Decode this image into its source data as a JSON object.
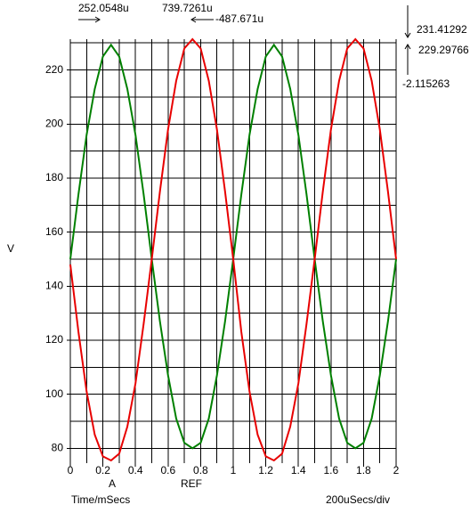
{
  "chart_data": {
    "type": "line",
    "ylabel": "V",
    "xlabel": "Time/mSecs",
    "scale_label": "200uSecs/div",
    "cursor_labels": [
      "A",
      "REF"
    ],
    "cursor_readouts": {
      "a_time": "252.0548u",
      "ref_time": "739.7261u",
      "delta_time": "-487.671u",
      "a_value": "231.41292",
      "ref_value": "229.29766",
      "delta_value": "-2.115263"
    },
    "x": [
      0,
      0.05,
      0.1,
      0.15,
      0.2,
      0.25,
      0.3,
      0.35,
      0.4,
      0.45,
      0.5,
      0.55,
      0.6,
      0.65,
      0.7,
      0.75,
      0.8,
      0.85,
      0.9,
      0.95,
      1,
      1.05,
      1.1,
      1.15,
      1.2,
      1.25,
      1.3,
      1.35,
      1.4,
      1.45,
      1.5,
      1.55,
      1.6,
      1.65,
      1.7,
      1.75,
      1.8,
      1.85,
      1.9,
      1.95,
      2
    ],
    "series": [
      {
        "color": "#008000",
        "values": [
          150,
          174,
          196,
          213,
          225,
          229.3,
          225,
          213,
          196,
          174,
          150,
          127,
          107,
          91,
          82,
          80,
          82,
          91,
          107,
          127,
          150,
          174,
          196,
          213,
          225,
          229.3,
          225,
          213,
          196,
          174,
          150,
          127,
          107,
          91,
          82,
          80,
          82,
          91,
          107,
          127,
          150
        ]
      },
      {
        "color": "#e80000",
        "values": [
          148,
          123,
          101,
          85,
          77,
          75.5,
          78,
          88,
          104,
          126,
          150,
          175,
          198,
          216,
          228,
          231.4,
          228,
          216,
          198,
          175,
          150,
          123,
          101,
          85,
          77,
          75.5,
          78,
          88,
          104,
          126,
          150,
          175,
          198,
          216,
          228,
          231.4,
          228,
          216,
          198,
          175,
          150
        ]
      }
    ],
    "xlim": [
      0,
      2
    ],
    "xticks": [
      0,
      0.2,
      0.4,
      0.6,
      0.8,
      1,
      1.2,
      1.4,
      1.6,
      1.8,
      2
    ],
    "xminor_ticks": [
      0.1,
      0.3,
      0.5,
      0.7,
      0.9,
      1.1,
      1.3,
      1.5,
      1.7,
      1.9
    ],
    "ylim": [
      74.5,
      231.4
    ],
    "yticks": [
      80,
      100,
      120,
      140,
      160,
      180,
      200,
      220
    ],
    "yminor_ticks": [
      90,
      110,
      130,
      150,
      170,
      190,
      210,
      230
    ],
    "grid": true
  }
}
